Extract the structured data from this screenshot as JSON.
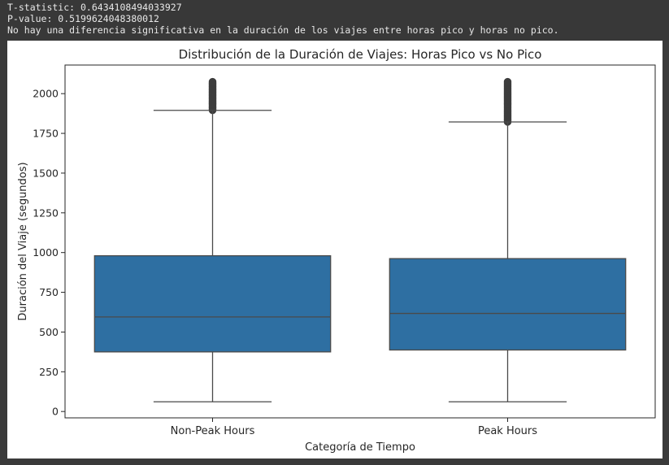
{
  "console": {
    "lines": [
      "T-statistic: 0.6434108494033927",
      "P-value: 0.5199624048380012",
      "No hay una diferencia significativa en la duración de los viajes entre horas pico y horas no pico."
    ]
  },
  "chart_data": {
    "type": "box",
    "title": "Distribución de la Duración de Viajes: Horas Pico vs No Pico",
    "xlabel": "Categoría de Tiempo",
    "ylabel": "Duración del Viaje (segundos)",
    "ylim": [
      -40,
      2180
    ],
    "yticks": [
      0,
      250,
      500,
      750,
      1000,
      1250,
      1500,
      1750,
      2000
    ],
    "grid": false,
    "box_color": "#2e6fa2",
    "line_color": "#4a4a4a",
    "categories": [
      "Non-Peak Hours",
      "Peak Hours"
    ],
    "boxes": [
      {
        "category": "Non-Peak Hours",
        "whisker_low": 61,
        "q1": 375,
        "median": 595,
        "q3": 980,
        "whisker_high": 1895,
        "outliers_min": 1895,
        "outliers_max": 2075
      },
      {
        "category": "Peak Hours",
        "whisker_low": 61,
        "q1": 387,
        "median": 617,
        "q3": 962,
        "whisker_high": 1822,
        "outliers_min": 1822,
        "outliers_max": 2075
      }
    ]
  }
}
